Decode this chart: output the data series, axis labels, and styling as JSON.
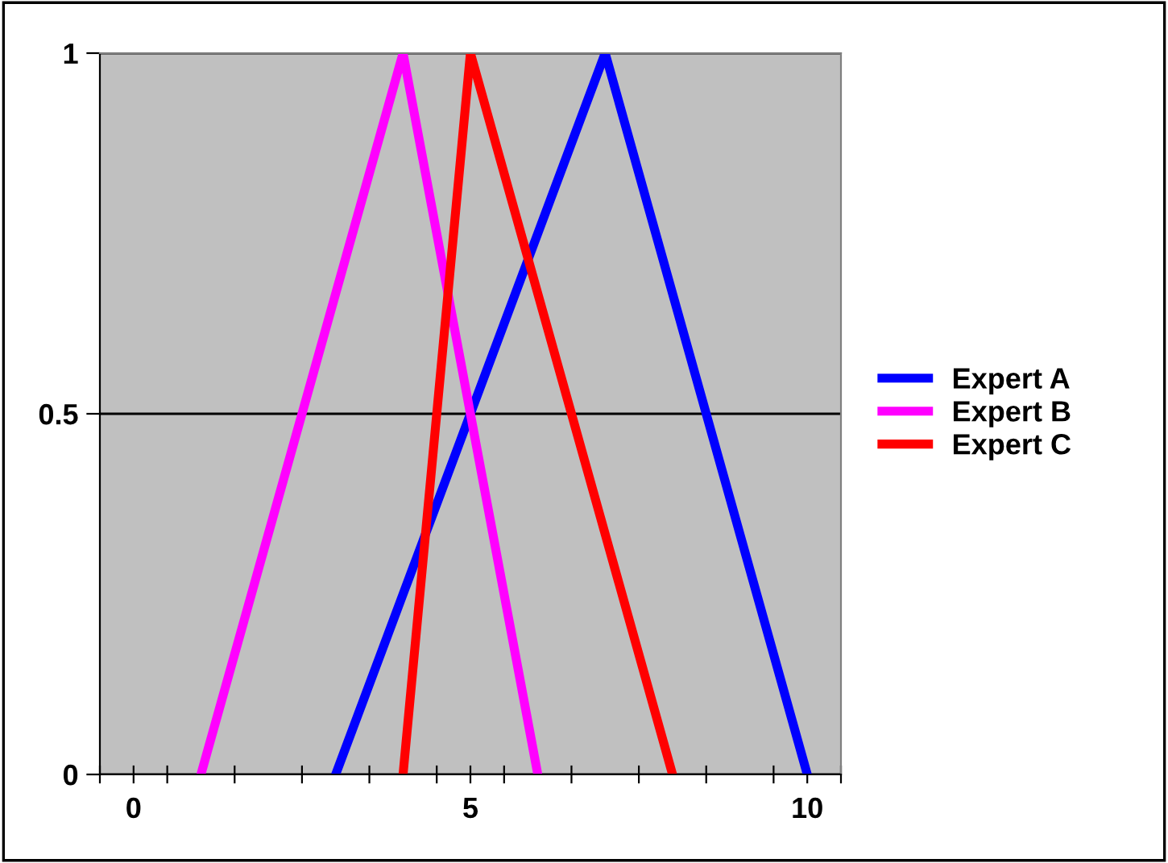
{
  "chart_data": {
    "type": "line",
    "xlim": [
      -0.5,
      10.5
    ],
    "xticks": [
      {
        "value": -0.5,
        "label": null
      },
      {
        "value": 0,
        "label": "0"
      },
      {
        "value": 0.5,
        "label": null
      },
      {
        "value": 1.5,
        "label": null
      },
      {
        "value": 2.5,
        "label": null
      },
      {
        "value": 3.5,
        "label": null
      },
      {
        "value": 4.5,
        "label": null
      },
      {
        "value": 5,
        "label": "5"
      },
      {
        "value": 5.5,
        "label": null
      },
      {
        "value": 6.5,
        "label": null
      },
      {
        "value": 7.5,
        "label": null
      },
      {
        "value": 8.5,
        "label": null
      },
      {
        "value": 9.5,
        "label": null
      },
      {
        "value": 10,
        "label": "10"
      },
      {
        "value": 10.5,
        "label": null
      }
    ],
    "ylim": [
      0,
      1
    ],
    "yticks": [
      0,
      0.5,
      1
    ],
    "grid": "y",
    "legend": "right",
    "marker": "none",
    "line_style": "solid",
    "series": [
      {
        "name": "Expert A",
        "color": "#0000ff",
        "x": [
          3,
          7,
          10
        ],
        "values": [
          0,
          1,
          0
        ]
      },
      {
        "name": "Expert B",
        "color": "#ff00ff",
        "x": [
          1,
          4,
          6
        ],
        "values": [
          0,
          1,
          0
        ]
      },
      {
        "name": "Expert C",
        "color": "#ff0000",
        "x": [
          4,
          5,
          8
        ],
        "values": [
          0,
          1,
          0
        ]
      }
    ]
  }
}
